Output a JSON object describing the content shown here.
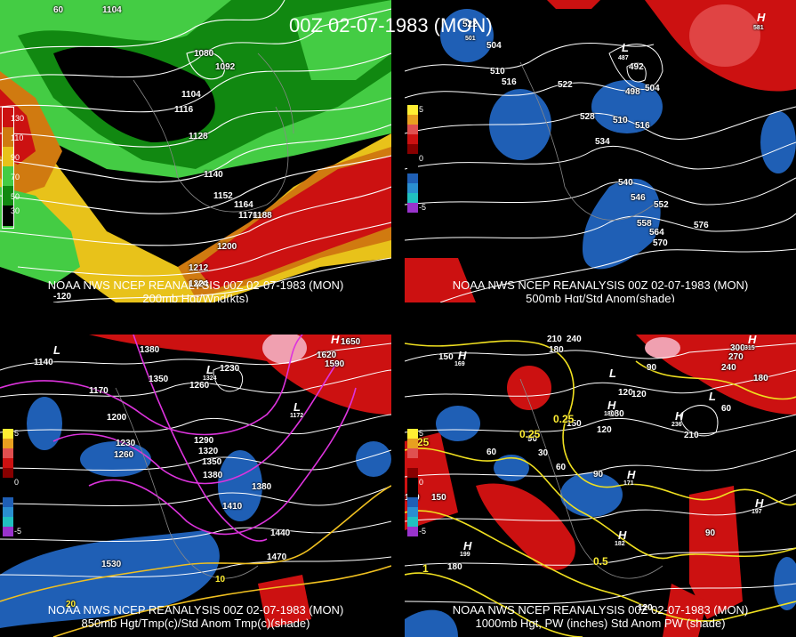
{
  "title": "00Z 02-07-1983 (MON)",
  "panels": {
    "p200": {
      "caption_line1": "NOAA NWS NCEP REANALYSIS 00Z 02-07-1983 (MON)",
      "caption_line2": "200mb Hgt/Wnd(kts)",
      "legend": [
        "130",
        "110",
        "90",
        "70",
        "50",
        "30"
      ],
      "colors": {
        "green_light": "#44cc44",
        "green_dark": "#118811",
        "yellow": "#e8c21a",
        "orange": "#d07a10",
        "red": "#cc1111"
      },
      "contour_labels": [
        "1104",
        "1080",
        "1092",
        "1104",
        "1116",
        "1128",
        "1140",
        "1152",
        "1164",
        "1176",
        "1188",
        "1200",
        "1212",
        "1224"
      ],
      "lat_lon_labels": [
        "60",
        "-120"
      ]
    },
    "p500": {
      "caption_line1": "NOAA NWS NCEP REANALYSIS 00Z 02-07-1983 (MON)",
      "caption_line2": "500mb Hgt/Std Anom(shade)",
      "legend": [
        "5",
        "4",
        "3",
        "2",
        "1",
        "0",
        "-1",
        "-2",
        "-3",
        "-4",
        "-5"
      ],
      "contour_labels": [
        "522",
        "504",
        "510",
        "516",
        "522",
        "492",
        "498",
        "504",
        "510",
        "516",
        "528",
        "534",
        "540",
        "546",
        "552",
        "558",
        "564",
        "570",
        "576"
      ],
      "pressure_marks": {
        "high": "H",
        "high_value": "581",
        "low": "L",
        "low_value": "487",
        "low2_value": "501"
      }
    },
    "p850": {
      "caption_line1": "NOAA NWS NCEP REANALYSIS 00Z 02-07-1983 (MON)",
      "caption_line2": "850mb Hgt/Tmp(c)/Std Anom Tmp(c)(shade)",
      "legend": [
        "5",
        "4",
        "3",
        "2",
        "1",
        "0",
        "-1",
        "-2",
        "-3",
        "-4",
        "-5"
      ],
      "contour_labels": [
        "1140",
        "1170",
        "1380",
        "1350",
        "1260",
        "1230",
        "1200",
        "1290",
        "1320",
        "1350",
        "1380",
        "1230",
        "1260",
        "1380",
        "1410",
        "1440",
        "1470",
        "1530",
        "1590",
        "1620",
        "1650",
        "1410"
      ],
      "temp_labels": [
        "-10",
        "10",
        "20"
      ],
      "pressure_marks": {
        "low": "L",
        "high": "H",
        "low_value": "1129",
        "low2_value": "1324",
        "low3_value": "1172",
        "high_value": "1639"
      }
    },
    "p1000": {
      "caption_line1": "NOAA NWS NCEP REANALYSIS 00Z 02-07-1983 (MON)",
      "caption_line2": "1000mb Hgt, PW (inches) Std Anom PW (shade)",
      "legend": [
        "5",
        "4",
        "3",
        "2",
        "1",
        "0",
        "-1",
        "-2",
        "-3",
        "-4",
        "-5"
      ],
      "contour_labels": [
        "210",
        "240",
        "180",
        "150",
        "90",
        "60",
        "120",
        "180",
        "150",
        "120",
        "210",
        "90",
        "60",
        "30",
        "60",
        "90",
        "120",
        "150",
        "180",
        "120",
        "270",
        "240",
        "180",
        "300",
        "60",
        "90",
        "150"
      ],
      "pw_labels": [
        "0.25",
        "0.25",
        "0.25",
        "0.5",
        "1"
      ],
      "pressure_marks": {
        "high": "H",
        "low": "L",
        "h1": "169",
        "h2": "180",
        "h3": "236",
        "h4": "197",
        "h5": "171",
        "h6": "182",
        "h7": "199",
        "h8": "315"
      }
    }
  }
}
